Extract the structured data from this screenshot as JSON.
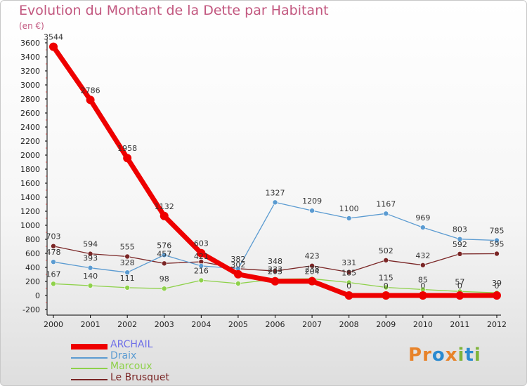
{
  "title": "Evolution du Montant de la Dette par Habitant",
  "unit_label": "(en €)",
  "logo": {
    "text": "Proxiti",
    "letters": [
      "P",
      "r",
      "o",
      "x",
      "i",
      "t",
      "i"
    ],
    "colors": [
      "#e8832a",
      "#e8832a",
      "#2a8ad0",
      "#e8832a",
      "#7fb43a",
      "#2a8ad0",
      "#7fb43a"
    ]
  },
  "chart_data": {
    "type": "line",
    "title": "Evolution du Montant de la Dette par Habitant",
    "ylabel": "(en €)",
    "xlabel": "",
    "x": [
      "2000",
      "2001",
      "2002",
      "2003",
      "2004",
      "2005",
      "2006",
      "2007",
      "2008",
      "2009",
      "2010",
      "2011",
      "2012"
    ],
    "ylim": [
      -200,
      3600
    ],
    "yticks": [
      "-200",
      "0",
      "200",
      "400",
      "600",
      "800",
      "1000",
      "1200",
      "1400",
      "1600",
      "1800",
      "2000",
      "2200",
      "2400",
      "2600",
      "2800",
      "3000",
      "3200",
      "3400",
      "3600"
    ],
    "grid": false,
    "legend_position": "bottom-left",
    "series": [
      {
        "name": "ARCHAIL",
        "color": "#ee0000",
        "values": [
          3544,
          2786,
          1958,
          1132,
          603,
          302,
          203,
          204,
          0,
          0,
          0,
          0,
          0
        ],
        "labels": [
          "3544",
          "2786",
          "1958",
          "1132",
          "603",
          "302",
          "203",
          "204",
          "0",
          "0",
          "0",
          "0",
          "0"
        ]
      },
      {
        "name": "Draix",
        "color": "#5b9bd1",
        "values": [
          478,
          393,
          328,
          576,
          421,
          382,
          1327,
          1209,
          1100,
          1167,
          969,
          803,
          785
        ],
        "labels": [
          "478",
          "393",
          "328",
          "576",
          "421",
          "382",
          "1327",
          "1209",
          "1100",
          "1167",
          "969",
          "803",
          "785"
        ]
      },
      {
        "name": "Marcoux",
        "color": "#8ed14a",
        "values": [
          167,
          140,
          111,
          98,
          216,
          170,
          233,
          238,
          185,
          115,
          85,
          57,
          39
        ],
        "labels": [
          "167",
          "140",
          "111",
          "98",
          "216",
          "",
          "233",
          "238",
          "185",
          "115",
          "85",
          "57",
          "39"
        ]
      },
      {
        "name": "Le Brusquet",
        "color": "#7a2626",
        "values": [
          703,
          594,
          555,
          457,
          480,
          382,
          348,
          423,
          331,
          502,
          432,
          592,
          595
        ],
        "labels": [
          "703",
          "594",
          "555",
          "457",
          "",
          "",
          "348",
          "423",
          "331",
          "502",
          "432",
          "592",
          "595"
        ]
      }
    ]
  }
}
